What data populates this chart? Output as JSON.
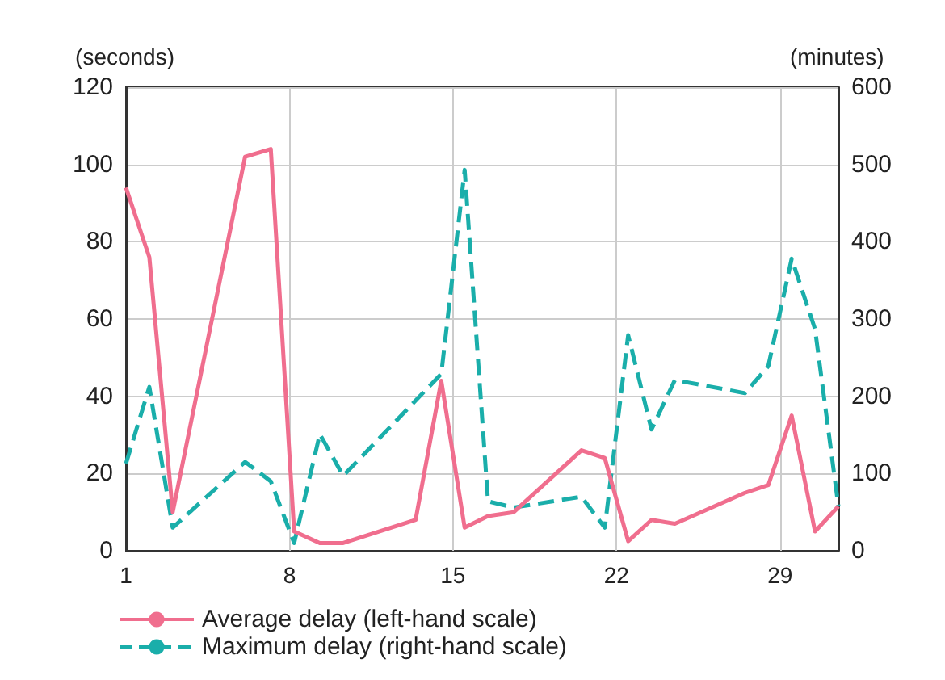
{
  "chart_data": {
    "type": "line",
    "ylabel": "(seconds)",
    "y2label": "(minutes)",
    "xlim": [
      1,
      31.5
    ],
    "xticks": [
      1,
      8,
      15,
      22,
      29
    ],
    "ylim": [
      0,
      120
    ],
    "yticks": [
      0,
      20,
      40,
      60,
      80,
      100,
      120
    ],
    "y2lim": [
      0,
      600
    ],
    "y2ticks": [
      0,
      100,
      200,
      300,
      400,
      500,
      600
    ],
    "grid": true,
    "legend": "bottom left",
    "marker": "none",
    "series": [
      {
        "name": "Average delay (left-hand scale)",
        "color": "#f06e8e",
        "line_style": "solid",
        "x": [
          1,
          2,
          3,
          6.1,
          7.2,
          8.2,
          9.3,
          10.3,
          13.4,
          14.5,
          15.5,
          16.5,
          17.6,
          20.5,
          21.5,
          22.5,
          23.5,
          24.5,
          27.5,
          28.5,
          29.5,
          30.5,
          31.5
        ],
        "values": [
          94,
          76,
          10,
          102,
          104,
          5,
          2,
          2,
          8,
          44,
          6,
          9,
          10,
          26,
          24,
          2.5,
          8,
          7,
          15,
          17,
          35,
          5,
          11.5
        ]
      },
      {
        "name": "Maximum delay (right-hand scale)",
        "color": "#1aaeaa",
        "line_style": "dashed",
        "axis": "y2",
        "x": [
          1,
          2,
          3,
          6.1,
          7.2,
          8.2,
          9.3,
          10.3,
          14.5,
          15.5,
          16.5,
          17.6,
          20.5,
          21.5,
          22.5,
          23.5,
          24.5,
          27.5,
          28.5,
          29.5,
          30.5,
          31.5
        ],
        "values": [
          113,
          212,
          30,
          115,
          90,
          10,
          151,
          97,
          229,
          493,
          64,
          56,
          70,
          30,
          279,
          157,
          221,
          204,
          239,
          378,
          287,
          58
        ]
      }
    ]
  }
}
